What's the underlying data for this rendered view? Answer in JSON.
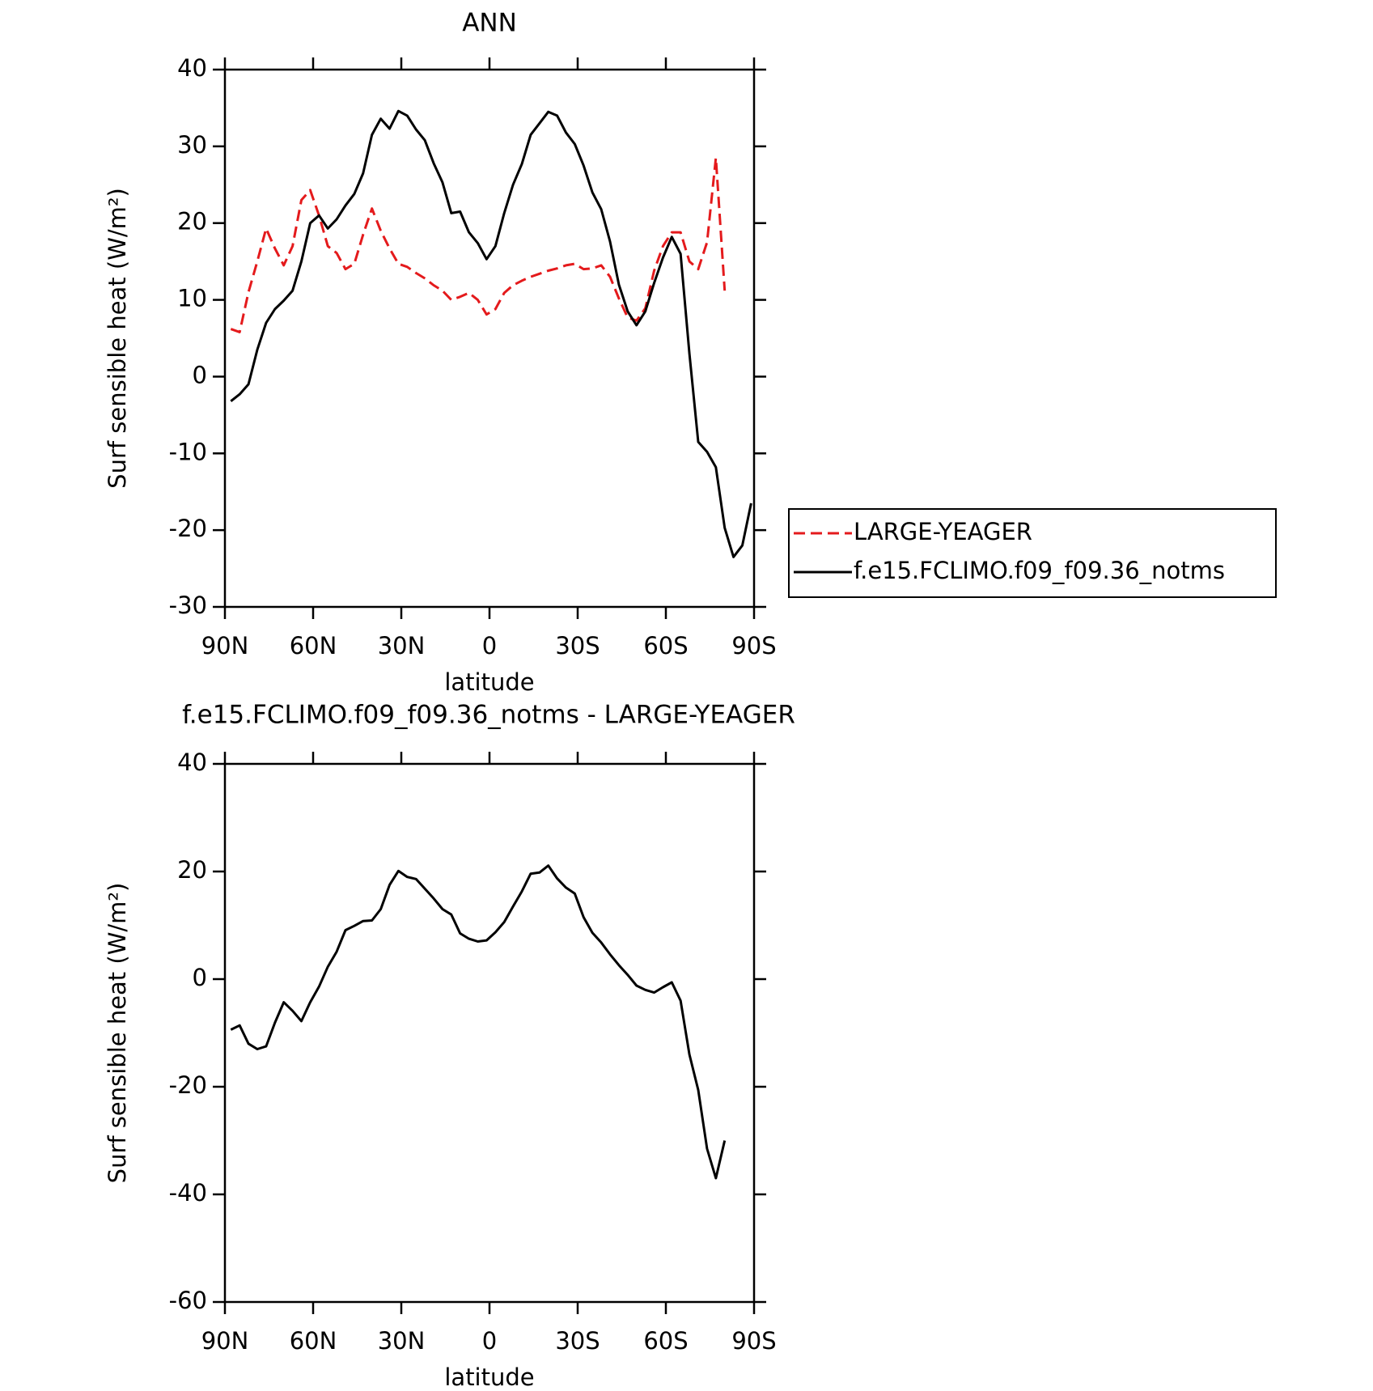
{
  "chart_data": [
    {
      "type": "line",
      "title": "ANN",
      "x_label": "latitude",
      "y_label": "Surf sensible heat (W/m²)",
      "x": [
        88,
        85,
        82,
        79,
        76,
        73,
        70,
        67,
        64,
        61,
        58,
        55,
        52,
        49,
        46,
        43,
        40,
        37,
        34,
        31,
        28,
        25,
        22,
        19,
        16,
        13,
        10,
        7,
        4,
        1,
        -2,
        -5,
        -8,
        -11,
        -14,
        -17,
        -20,
        -23,
        -26,
        -29,
        -32,
        -35,
        -38,
        -41,
        -44,
        -47,
        -50,
        -53,
        -56,
        -59,
        -62,
        -65,
        -68,
        -71,
        -74,
        -77,
        -80,
        -83,
        -86,
        -89
      ],
      "series": [
        {
          "name": "LARGE-YEAGER",
          "color": "#e41a1c",
          "line_style": "dashed",
          "values": [
            6.2,
            5.8,
            11,
            15,
            19.3,
            16.7,
            14.5,
            17,
            23,
            24.3,
            21,
            17,
            16.1,
            14,
            14.7,
            18.5,
            21.9,
            19,
            16.7,
            14.7,
            14.3,
            13.5,
            12.8,
            11.9,
            11.2,
            10,
            10.4,
            10.9,
            10,
            8.1,
            8.8,
            10.9,
            11.9,
            12.5,
            13,
            13.4,
            13.8,
            14.1,
            14.5,
            14.7,
            14,
            14.1,
            14.5,
            13,
            10.2,
            7.7,
            7.3,
            8.9,
            13.8,
            17,
            18.8,
            18.8,
            15,
            14,
            17.5,
            28.5,
            11.2,
            null,
            null,
            null
          ]
        },
        {
          "name": "f.e15.FCLIMO.f09_f09.36_notms",
          "color": "#000000",
          "line_style": "solid",
          "values": [
            -3.2,
            -2.3,
            -1,
            3.5,
            7,
            8.8,
            9.9,
            11.2,
            15,
            20,
            21,
            19.3,
            20.5,
            22.3,
            23.8,
            26.5,
            31.5,
            33.6,
            32.3,
            34.6,
            34,
            32.2,
            30.8,
            27.8,
            25.3,
            21.3,
            21.5,
            18.8,
            17.4,
            15.3,
            17,
            21.3,
            25,
            27.7,
            31.5,
            33,
            34.5,
            34,
            31.8,
            30.3,
            27.5,
            24,
            21.8,
            17.6,
            12,
            8.5,
            6.7,
            8.5,
            12.2,
            15.5,
            18.2,
            16,
            3,
            -8.5,
            -9.8,
            -11.8,
            -19.7,
            -23.5,
            -22,
            -16.5
          ]
        }
      ],
      "xlim": [
        90,
        -90
      ],
      "xticks": [
        {
          "value": 90,
          "label": "90N"
        },
        {
          "value": 60,
          "label": "60N"
        },
        {
          "value": 30,
          "label": "30N"
        },
        0,
        {
          "value": -30,
          "label": "30S"
        },
        {
          "value": -60,
          "label": "60S"
        },
        {
          "value": -90,
          "label": "90S"
        }
      ],
      "ylim": [
        -30,
        40
      ],
      "yticks": [
        -30,
        -20,
        -10,
        0,
        10,
        20,
        30,
        40
      ],
      "legend": "right"
    },
    {
      "type": "line",
      "title": "f.e15.FCLIMO.f09_f09.36_notms - LARGE-YEAGER",
      "x_label": "latitude",
      "y_label": "Surf sensible heat (W/m²)",
      "x": [
        88,
        85,
        82,
        79,
        76,
        73,
        70,
        67,
        64,
        61,
        58,
        55,
        52,
        49,
        46,
        43,
        40,
        37,
        34,
        31,
        28,
        25,
        22,
        19,
        16,
        13,
        10,
        7,
        4,
        1,
        -2,
        -5,
        -8,
        -11,
        -14,
        -17,
        -20,
        -23,
        -26,
        -29,
        -32,
        -35,
        -38,
        -41,
        -44,
        -47,
        -50,
        -53,
        -56,
        -59,
        -62,
        -65,
        -68,
        -71,
        -74,
        -77,
        -80,
        -83,
        -86,
        -89
      ],
      "color": "#000000",
      "values": [
        -9.4,
        -8.6,
        -12,
        -13,
        -12.5,
        -8.1,
        -4.3,
        -5.9,
        -7.8,
        -4.3,
        -1.4,
        2.3,
        5.1,
        9.1,
        9.9,
        10.8,
        10.9,
        13,
        17.5,
        20.1,
        19,
        18.6,
        16.8,
        15,
        13,
        12,
        8.5,
        7.5,
        7,
        7.2,
        8.7,
        10.6,
        13.5,
        16.3,
        19.6,
        19.8,
        21.1,
        18.7,
        17,
        15.9,
        11.5,
        8.6,
        6.8,
        4.6,
        2.6,
        0.8,
        -1.2,
        -2,
        -2.5,
        -1.5,
        -0.6,
        -4,
        -14,
        -20.6,
        -31.5,
        -37,
        -30,
        null,
        null,
        null
      ],
      "xlim": [
        90,
        -90
      ],
      "xticks": [
        {
          "value": 90,
          "label": "90N"
        },
        {
          "value": 60,
          "label": "60N"
        },
        {
          "value": 30,
          "label": "30N"
        },
        0,
        {
          "value": -30,
          "label": "30S"
        },
        {
          "value": -60,
          "label": "60S"
        },
        {
          "value": -90,
          "label": "90S"
        }
      ],
      "ylim": [
        -60,
        40
      ],
      "yticks": [
        -60,
        -40,
        -20,
        0,
        20,
        40
      ]
    }
  ]
}
